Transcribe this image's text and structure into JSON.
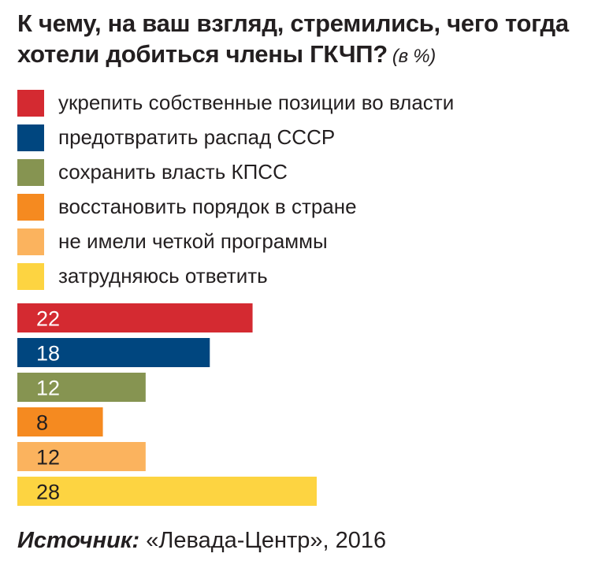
{
  "title": "К чему, на ваш взгляд, стремились, чего тогда хотели добиться члены ГКЧП?",
  "unit": "(в %)",
  "legend": [
    {
      "label": "укрепить собственные позиции во власти",
      "color": "#d42a31"
    },
    {
      "label": "предотвратить распад СССР",
      "color": "#00467f"
    },
    {
      "label": "сохранить власть КПСС",
      "color": "#869451"
    },
    {
      "label": "восстановить порядок в стране",
      "color": "#f58a20"
    },
    {
      "label": "не имели четкой программы",
      "color": "#fbb35e"
    },
    {
      "label": "затрудняюсь ответить",
      "color": "#fdd441"
    }
  ],
  "source": {
    "label": "Источник:",
    "text": "«Левада-Центр», 2016"
  },
  "chart_data": {
    "type": "bar",
    "orientation": "horizontal",
    "categories": [
      "укрепить собственные позиции во власти",
      "предотвратить распад СССР",
      "сохранить власть КПСС",
      "восстановить порядок в стране",
      "не имели четкой программы",
      "затрудняюсь ответить"
    ],
    "values": [
      22,
      18,
      12,
      8,
      12,
      28
    ],
    "colors": [
      "#d42a31",
      "#00467f",
      "#869451",
      "#f58a20",
      "#fbb35e",
      "#fdd441"
    ],
    "data_labels": [
      "22",
      "18",
      "12",
      "8",
      "12",
      "28"
    ],
    "label_colors": [
      "#ffffff",
      "#ffffff",
      "#ffffff",
      "#231f20",
      "#231f20",
      "#231f20"
    ],
    "xlim": [
      0,
      28
    ],
    "grid": false
  }
}
